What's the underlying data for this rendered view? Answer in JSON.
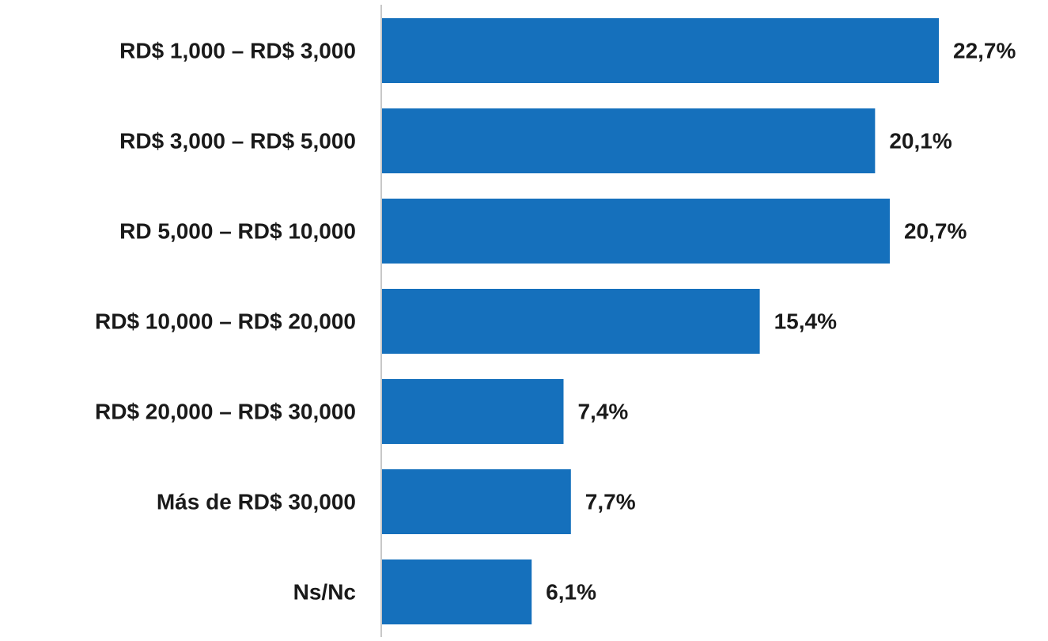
{
  "chart_data": {
    "type": "bar",
    "orientation": "horizontal",
    "categories": [
      "RD$ 1,000 – RD$ 3,000",
      "RD$ 3,000 – RD$ 5,000",
      "RD 5,000 – RD$ 10,000",
      "RD$ 10,000 – RD$ 20,000",
      "RD$ 20,000 – RD$ 30,000",
      "Más de RD$ 30,000",
      "Ns/Nc"
    ],
    "values": [
      22.7,
      20.1,
      20.7,
      15.4,
      7.4,
      7.7,
      6.1
    ],
    "data_labels": [
      "22,7%",
      "20,1%",
      "20,7%",
      "15,4%",
      "7,4%",
      "7,7%",
      "6,1%"
    ],
    "title": "",
    "xlabel": "",
    "ylabel": "",
    "xlim": [
      0,
      22.7
    ],
    "grid": false,
    "bar_color": "#1570BC",
    "axis_color": "#c8c8c8"
  }
}
